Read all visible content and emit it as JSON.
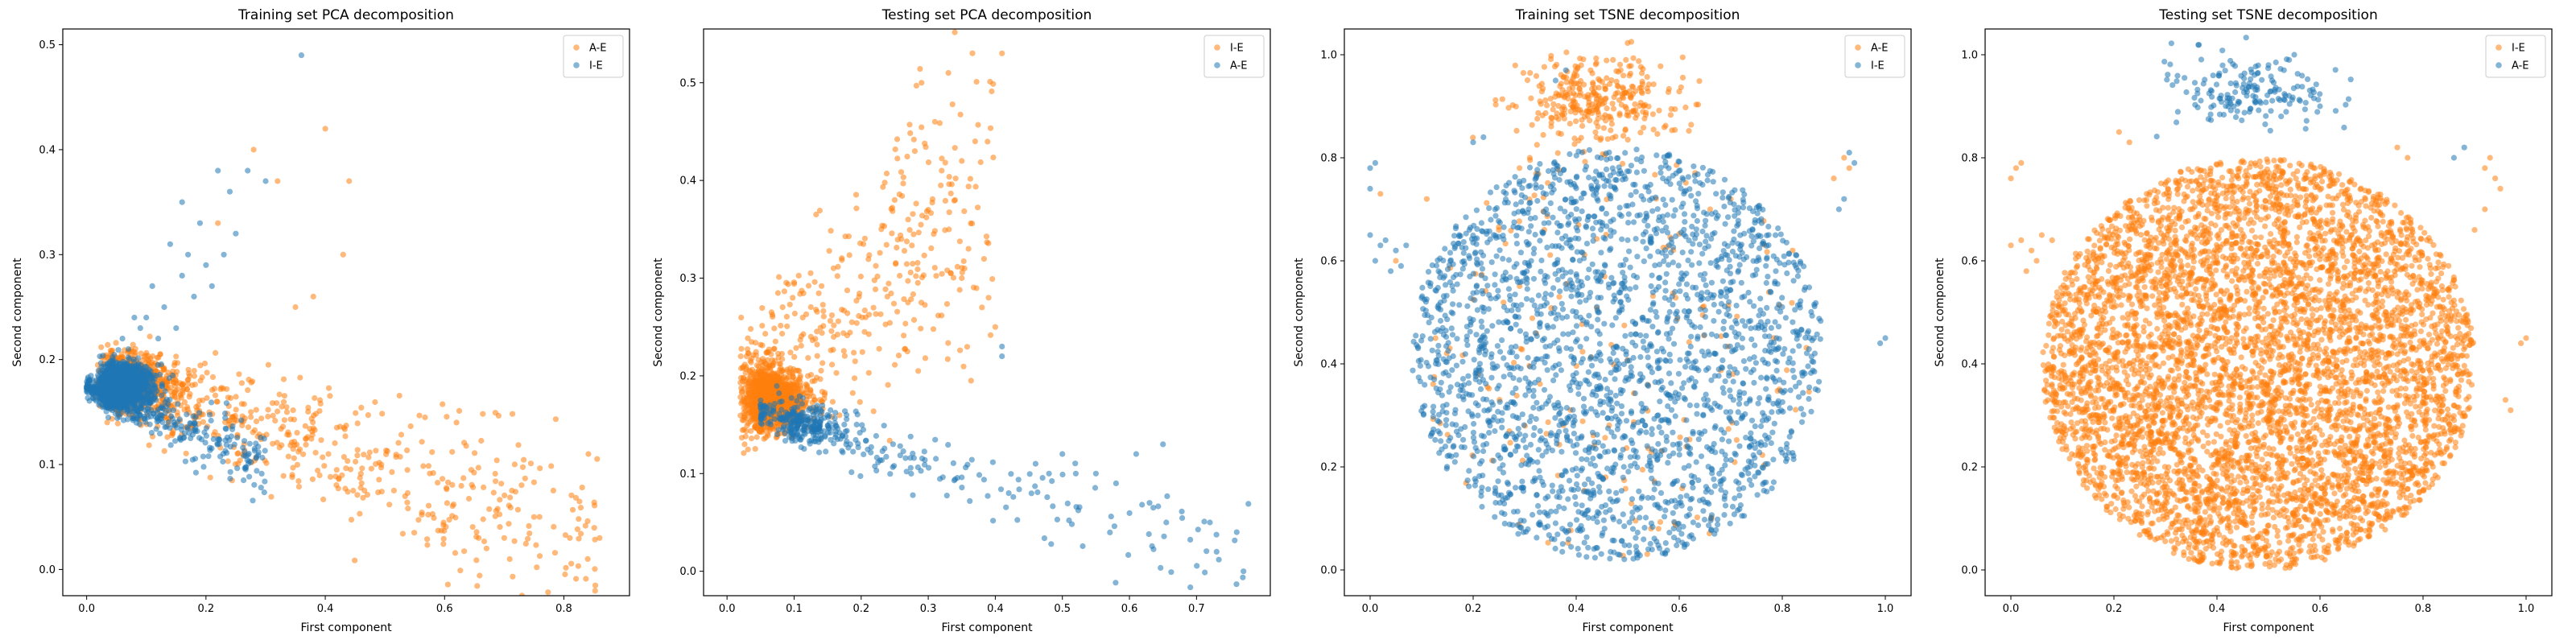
{
  "chart_data": [
    {
      "type": "scatter",
      "title": "Training set PCA decomposition",
      "xlabel": "First component",
      "ylabel": "Second component",
      "xlim": [
        -0.04,
        0.91
      ],
      "ylim": [
        -0.025,
        0.515
      ],
      "xticks": [
        0.0,
        0.2,
        0.4,
        0.6,
        0.8
      ],
      "yticks": [
        0.0,
        0.1,
        0.2,
        0.3,
        0.4,
        0.5
      ],
      "legend": "top-right",
      "series": [
        {
          "name": "A-E",
          "color": "#ff7f0e",
          "gen": {
            "cluster_count": 500,
            "center": [
              0.05,
              0.18
            ],
            "spread": [
              0.05,
              0.015
            ],
            "n": 700,
            "x_from": 0.04,
            "x_to": 0.86,
            "y_at_start": 0.18,
            "slope": -0.185,
            "y_noise": 0.035,
            "x_skew": 2.0
          },
          "points": [
            [
              0.28,
              0.4
            ],
            [
              0.4,
              0.42
            ],
            [
              0.44,
              0.37
            ],
            [
              0.32,
              0.37
            ],
            [
              0.43,
              0.3
            ],
            [
              0.38,
              0.26
            ],
            [
              0.22,
              0.33
            ],
            [
              0.35,
              0.25
            ],
            [
              0.62,
              0.14
            ],
            [
              0.7,
              0.03
            ],
            [
              0.81,
              0.03
            ],
            [
              0.86,
              0.03
            ],
            [
              0.84,
              0.01
            ],
            [
              0.75,
              0.05
            ]
          ]
        },
        {
          "name": "I-E",
          "color": "#1f77b4",
          "gen": {
            "cluster_count": 1800,
            "center": [
              0.04,
              0.175
            ],
            "spread": [
              0.03,
              0.01
            ],
            "n": 320,
            "x_from": 0.0,
            "x_to": 0.3,
            "y_at_start": 0.175,
            "slope": -0.25,
            "y_noise": 0.012,
            "x_skew": 1.5
          },
          "points": [
            [
              0.36,
              0.49
            ],
            [
              0.22,
              0.38
            ],
            [
              0.24,
              0.36
            ],
            [
              0.16,
              0.35
            ],
            [
              0.19,
              0.33
            ],
            [
              0.14,
              0.31
            ],
            [
              0.2,
              0.29
            ],
            [
              0.16,
              0.28
            ],
            [
              0.11,
              0.27
            ],
            [
              0.18,
              0.26
            ],
            [
              0.21,
              0.27
            ],
            [
              0.3,
              0.37
            ],
            [
              0.27,
              0.38
            ],
            [
              0.13,
              0.25
            ],
            [
              0.1,
              0.24
            ],
            [
              0.09,
              0.23
            ],
            [
              0.08,
              0.24
            ],
            [
              0.23,
              0.3
            ],
            [
              0.17,
              0.3
            ],
            [
              0.12,
              0.22
            ],
            [
              0.15,
              0.23
            ],
            [
              0.06,
              0.22
            ],
            [
              0.07,
              0.21
            ],
            [
              0.25,
              0.32
            ]
          ]
        }
      ]
    },
    {
      "type": "scatter",
      "title": "Testing set PCA decomposition",
      "xlabel": "First component",
      "ylabel": "Second component",
      "xlim": [
        -0.035,
        0.81
      ],
      "ylim": [
        -0.025,
        0.555
      ],
      "xticks": [
        0.0,
        0.1,
        0.2,
        0.3,
        0.4,
        0.5,
        0.6,
        0.7
      ],
      "yticks": [
        0.0,
        0.1,
        0.2,
        0.3,
        0.4,
        0.5
      ],
      "legend": "top-right",
      "series": [
        {
          "name": "I-E",
          "color": "#ff7f0e",
          "gen": {
            "cluster_count": 1400,
            "center": [
              0.05,
              0.175
            ],
            "spread": [
              0.03,
              0.014
            ],
            "n": 450,
            "x_from": 0.02,
            "x_to": 0.4,
            "y_at_start": 0.18,
            "slope": 0.55,
            "y_noise": 0.07,
            "x_skew": 1.4
          },
          "points": [
            [
              0.41,
              0.53
            ],
            [
              0.29,
              0.5
            ],
            [
              0.33,
              0.51
            ],
            [
              0.31,
              0.46
            ],
            [
              0.35,
              0.42
            ],
            [
              0.28,
              0.43
            ],
            [
              0.32,
              0.41
            ],
            [
              0.37,
              0.44
            ],
            [
              0.25,
              0.38
            ],
            [
              0.3,
              0.37
            ],
            [
              0.34,
              0.38
            ],
            [
              0.39,
              0.28
            ],
            [
              0.4,
              0.25
            ],
            [
              0.38,
              0.27
            ],
            [
              0.27,
              0.36
            ],
            [
              0.23,
              0.35
            ],
            [
              0.26,
              0.34
            ],
            [
              0.36,
              0.33
            ],
            [
              0.35,
              0.3
            ]
          ]
        },
        {
          "name": "A-E",
          "color": "#1f77b4",
          "gen": {
            "cluster_count": 200,
            "center": [
              0.1,
              0.15
            ],
            "spread": [
              0.04,
              0.012
            ],
            "n": 220,
            "x_from": 0.05,
            "x_to": 0.78,
            "y_at_start": 0.165,
            "slope": -0.22,
            "y_noise": 0.02,
            "x_skew": 2.0
          },
          "points": [
            [
              0.41,
              0.23
            ],
            [
              0.41,
              0.22
            ],
            [
              0.65,
              0.13
            ],
            [
              0.72,
              0.05
            ],
            [
              0.73,
              0.02
            ],
            [
              0.76,
              0.04
            ],
            [
              0.77,
              0.0
            ],
            [
              0.58,
              0.09
            ],
            [
              0.61,
              0.12
            ],
            [
              0.55,
              0.1
            ],
            [
              0.5,
              0.12
            ],
            [
              0.48,
              0.1
            ],
            [
              0.42,
              0.08
            ],
            [
              0.46,
              0.11
            ],
            [
              0.52,
              0.1
            ],
            [
              0.63,
              0.07
            ]
          ]
        }
      ]
    },
    {
      "type": "scatter",
      "title": "Training set TSNE decomposition",
      "xlabel": "First component",
      "ylabel": "Second component",
      "xlim": [
        -0.05,
        1.05
      ],
      "ylim": [
        -0.05,
        1.05
      ],
      "xticks": [
        0.0,
        0.2,
        0.4,
        0.6,
        0.8,
        1.0
      ],
      "yticks": [
        0.0,
        0.2,
        0.4,
        0.6,
        0.8,
        1.0
      ],
      "legend": "top-right",
      "series": [
        {
          "name": "A-E",
          "color": "#ff7f0e",
          "gen": {
            "blob_count": 320,
            "blob_center": [
              0.44,
              0.91
            ],
            "blob_spread": [
              0.08,
              0.045
            ],
            "n": 160,
            "cx": 0.48,
            "cy": 0.42,
            "rx": 0.38,
            "ry": 0.4
          },
          "points": [
            [
              0.92,
              0.8
            ],
            [
              0.93,
              0.78
            ],
            [
              0.9,
              0.76
            ],
            [
              0.66,
              0.7
            ],
            [
              0.7,
              0.72
            ],
            [
              0.29,
              0.78
            ],
            [
              0.31,
              0.8
            ],
            [
              0.02,
              0.73
            ],
            [
              0.11,
              0.72
            ],
            [
              0.05,
              0.6
            ],
            [
              0.82,
              0.62
            ],
            [
              0.25,
              0.66
            ]
          ]
        },
        {
          "name": "I-E",
          "color": "#1f77b4",
          "gen": {
            "n": 2400,
            "cx": 0.48,
            "cy": 0.42,
            "rx": 0.4,
            "ry": 0.4
          },
          "points": [
            [
              0.0,
              0.65
            ],
            [
              0.02,
              0.63
            ],
            [
              0.03,
              0.64
            ],
            [
              0.01,
              0.6
            ],
            [
              0.04,
              0.58
            ],
            [
              0.05,
              0.62
            ],
            [
              0.07,
              0.63
            ],
            [
              0.06,
              0.59
            ],
            [
              0.0,
              0.78
            ],
            [
              0.01,
              0.79
            ],
            [
              0.0,
              0.74
            ],
            [
              0.99,
              0.44
            ],
            [
              1.0,
              0.45
            ],
            [
              0.93,
              0.81
            ],
            [
              0.94,
              0.79
            ],
            [
              0.91,
              0.7
            ],
            [
              0.92,
              0.72
            ],
            [
              0.36,
              0.95
            ],
            [
              0.38,
              0.97
            ],
            [
              0.2,
              0.83
            ],
            [
              0.22,
              0.84
            ]
          ]
        }
      ]
    },
    {
      "type": "scatter",
      "title": "Testing set TSNE decomposition",
      "xlabel": "First component",
      "ylabel": "Second component",
      "xlim": [
        -0.05,
        1.05
      ],
      "ylim": [
        -0.05,
        1.05
      ],
      "xticks": [
        0.0,
        0.2,
        0.4,
        0.6,
        0.8,
        1.0
      ],
      "yticks": [
        0.0,
        0.2,
        0.4,
        0.6,
        0.8,
        1.0
      ],
      "legend": "top-right",
      "series": [
        {
          "name": "I-E",
          "color": "#ff7f0e",
          "gen": {
            "n": 5600,
            "cx": 0.48,
            "cy": 0.4,
            "rx": 0.42,
            "ry": 0.4
          },
          "points": [
            [
              0.0,
              0.63
            ],
            [
              0.02,
              0.64
            ],
            [
              0.04,
              0.62
            ],
            [
              0.05,
              0.6
            ],
            [
              0.03,
              0.58
            ],
            [
              0.06,
              0.65
            ],
            [
              0.08,
              0.64
            ],
            [
              0.01,
              0.78
            ],
            [
              0.0,
              0.76
            ],
            [
              0.02,
              0.79
            ],
            [
              0.93,
              0.8
            ],
            [
              0.92,
              0.78
            ],
            [
              0.94,
              0.76
            ],
            [
              0.95,
              0.74
            ],
            [
              1.0,
              0.45
            ],
            [
              0.99,
              0.44
            ],
            [
              0.96,
              0.33
            ],
            [
              0.97,
              0.31
            ],
            [
              0.92,
              0.7
            ],
            [
              0.9,
              0.66
            ],
            [
              0.21,
              0.85
            ],
            [
              0.23,
              0.83
            ],
            [
              0.75,
              0.82
            ],
            [
              0.77,
              0.8
            ]
          ]
        },
        {
          "name": "A-E",
          "color": "#1f77b4",
          "gen": {
            "blob_count": 170,
            "blob_center": [
              0.46,
              0.93
            ],
            "blob_spread": [
              0.08,
              0.035
            ],
            "n": 0,
            "cx": 0.5,
            "cy": 0.5,
            "rx": 0.1,
            "ry": 0.1
          },
          "points": [
            [
              0.54,
              0.99
            ],
            [
              0.55,
              1.0
            ],
            [
              0.53,
              0.97
            ],
            [
              0.5,
              0.98
            ],
            [
              0.86,
              0.8
            ],
            [
              0.88,
              0.82
            ],
            [
              0.6,
              0.9
            ]
          ]
        }
      ]
    }
  ]
}
